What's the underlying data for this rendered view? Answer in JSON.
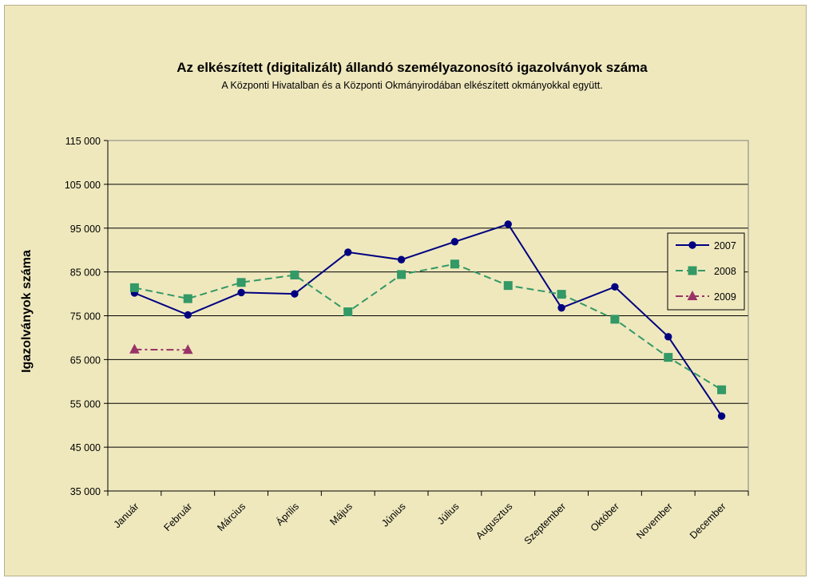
{
  "chart_data": {
    "type": "line",
    "title": "Az elkészített (digitalizált) állandó személyazonosító igazolványok száma",
    "subtitle": "A Központi Hivatalban és a Központi Okmányirodában elkészített okmányokkal együtt.",
    "xlabel": "",
    "ylabel": "Igazolványok száma",
    "ylim": [
      35000,
      115000
    ],
    "ytick_step": 10000,
    "ytick_labels": [
      "35 000",
      "45 000",
      "55 000",
      "65 000",
      "75 000",
      "85 000",
      "95 000",
      "105 000",
      "115 000"
    ],
    "categories": [
      "Január",
      "Február",
      "Március",
      "Április",
      "Május",
      "Június",
      "Július",
      "Augusztus",
      "Szeptember",
      "Október",
      "November",
      "December"
    ],
    "grid": "horizontal",
    "legend_position": "right",
    "series": [
      {
        "name": "2007",
        "color": "#000080",
        "marker": "diamond",
        "dash": "solid",
        "values": [
          80200,
          75200,
          80300,
          80000,
          89500,
          87800,
          91900,
          95900,
          76800,
          81600,
          70200,
          52100
        ]
      },
      {
        "name": "2008",
        "color": "#339966",
        "marker": "square",
        "dash": "dashed",
        "values": [
          81400,
          78900,
          82600,
          84300,
          75900,
          84400,
          86800,
          81900,
          79900,
          74200,
          65500,
          58100
        ]
      },
      {
        "name": "2009",
        "color": "#993366",
        "marker": "triangle",
        "dash": "dashdot",
        "values": [
          67300,
          67200,
          null,
          null,
          null,
          null,
          null,
          null,
          null,
          null,
          null,
          null
        ]
      }
    ]
  }
}
